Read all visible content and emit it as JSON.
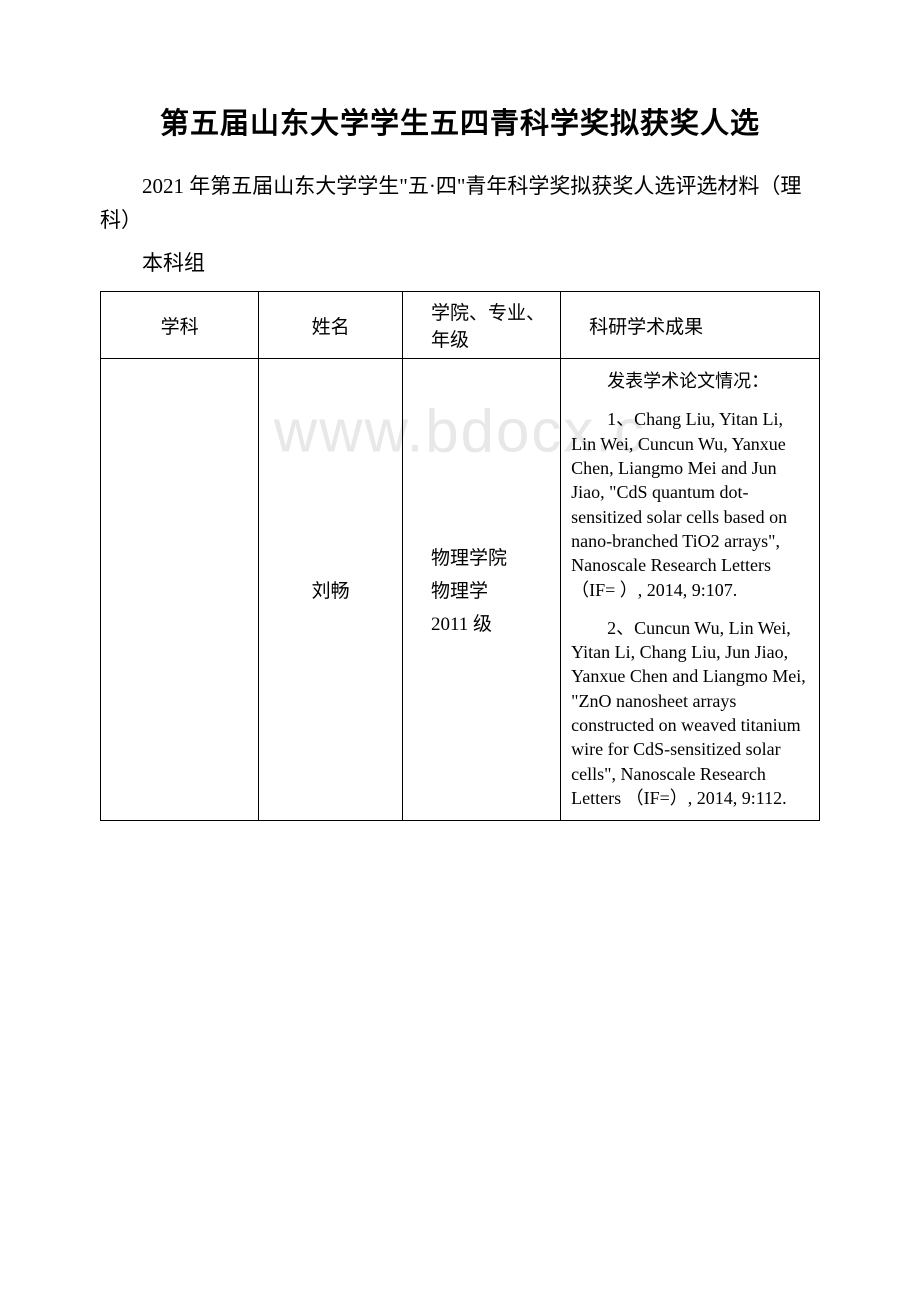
{
  "watermark": "www.bdocx.c",
  "title": "第五届山东大学学生五四青科学奖拟获奖人选",
  "intro": "2021 年第五届山东大学学生\"五·四\"青年科学奖拟获奖人选评选材料（理科）",
  "group_label": "本科组",
  "table": {
    "headers": {
      "subject": "学科",
      "name": "姓名",
      "school": "学院、专业、年级",
      "result": "科研学术成果"
    },
    "row": {
      "subject": "",
      "name": "刘畅",
      "school": {
        "line1": "物理学院",
        "line2": "物理学",
        "line3": "2011 级"
      },
      "result": {
        "p1": "发表学术论文情况：",
        "p2": "1、Chang Liu, Yitan Li, Lin Wei, Cuncun Wu, Yanxue Chen, Liangmo Mei and Jun Jiao, \"CdS quantum dot-sensitized solar cells based on nano-branched TiO2 arrays\", Nanoscale Research Letters （IF= ）, 2014, 9:107.",
        "p3": "2、Cuncun Wu, Lin Wei, Yitan Li, Chang Liu, Jun Jiao, Yanxue Chen and Liangmo Mei, \"ZnO nanosheet arrays constructed on weaved titanium wire for CdS-sensitized solar cells\", Nanoscale Research Letters （IF=）, 2014, 9:112."
      }
    }
  }
}
